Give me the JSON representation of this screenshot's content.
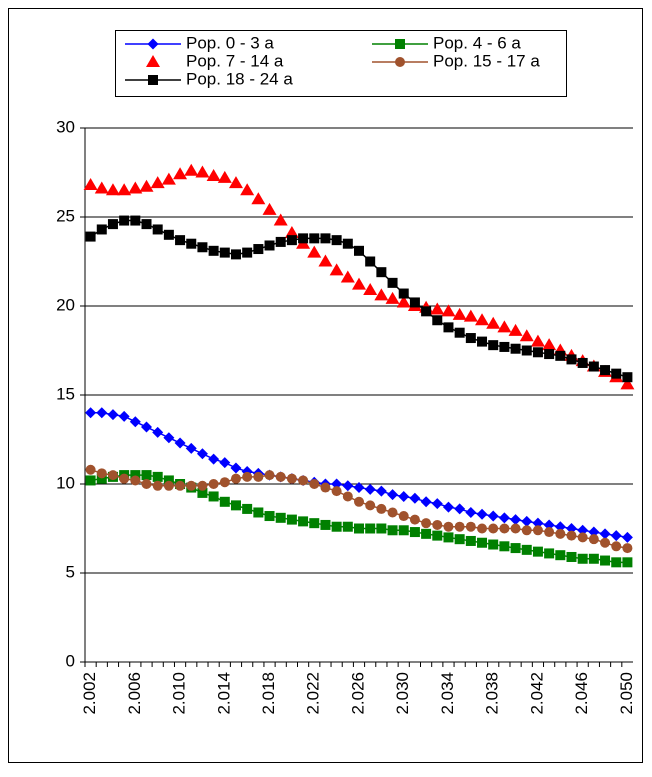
{
  "chart_data": {
    "type": "line",
    "categories": [
      "2.002",
      null,
      null,
      null,
      "2.006",
      null,
      null,
      null,
      "2.010",
      null,
      null,
      null,
      "2.014",
      null,
      null,
      null,
      "2.018",
      null,
      null,
      null,
      "2.022",
      null,
      null,
      null,
      "2.026",
      null,
      null,
      null,
      "2.030",
      null,
      null,
      null,
      "2.034",
      null,
      null,
      null,
      "2.038",
      null,
      null,
      null,
      "2.042",
      null,
      null,
      null,
      "2.046",
      null,
      null,
      null,
      "2.050"
    ],
    "series": [
      {
        "name": "Pop. 0 - 3 a",
        "color": "#0000ff",
        "marker": "diamond",
        "line": true,
        "values": [
          14.0,
          14.0,
          13.9,
          13.8,
          13.5,
          13.2,
          12.9,
          12.6,
          12.3,
          12.0,
          11.7,
          11.4,
          11.2,
          10.9,
          10.7,
          10.6,
          10.5,
          10.4,
          10.3,
          10.2,
          10.1,
          10.0,
          10.0,
          9.9,
          9.8,
          9.7,
          9.6,
          9.4,
          9.3,
          9.2,
          9.0,
          8.9,
          8.7,
          8.6,
          8.4,
          8.3,
          8.2,
          8.1,
          8.0,
          7.9,
          7.8,
          7.7,
          7.6,
          7.5,
          7.4,
          7.3,
          7.2,
          7.1,
          7.0
        ]
      },
      {
        "name": "Pop. 4 - 6 a",
        "color": "#008000",
        "marker": "square",
        "line": true,
        "values": [
          10.2,
          10.3,
          10.4,
          10.5,
          10.5,
          10.5,
          10.4,
          10.2,
          10.0,
          9.8,
          9.5,
          9.3,
          9.0,
          8.8,
          8.6,
          8.4,
          8.2,
          8.1,
          8.0,
          7.9,
          7.8,
          7.7,
          7.6,
          7.6,
          7.5,
          7.5,
          7.5,
          7.4,
          7.4,
          7.3,
          7.2,
          7.1,
          7.0,
          6.9,
          6.8,
          6.7,
          6.6,
          6.5,
          6.4,
          6.3,
          6.2,
          6.1,
          6.0,
          5.9,
          5.8,
          5.8,
          5.7,
          5.6,
          5.6
        ]
      },
      {
        "name": "Pop. 7 - 14 a",
        "color": "#ff0000",
        "marker": "triangle",
        "line": false,
        "values": [
          26.8,
          26.6,
          26.5,
          26.5,
          26.6,
          26.7,
          26.9,
          27.1,
          27.4,
          27.6,
          27.5,
          27.3,
          27.2,
          26.9,
          26.5,
          26.0,
          25.4,
          24.8,
          24.1,
          23.5,
          23.0,
          22.5,
          22.0,
          21.6,
          21.2,
          20.9,
          20.6,
          20.4,
          20.2,
          20.0,
          19.9,
          19.8,
          19.7,
          19.5,
          19.4,
          19.2,
          19.0,
          18.8,
          18.6,
          18.3,
          18.0,
          17.8,
          17.5,
          17.2,
          16.9,
          16.6,
          16.3,
          16.0,
          15.6
        ]
      },
      {
        "name": "Pop. 15 - 17 a",
        "color": "#a0522d",
        "marker": "circle",
        "line": true,
        "values": [
          10.8,
          10.6,
          10.5,
          10.3,
          10.2,
          10.0,
          9.9,
          9.9,
          9.9,
          9.9,
          9.9,
          10.0,
          10.1,
          10.3,
          10.4,
          10.4,
          10.5,
          10.4,
          10.3,
          10.2,
          10.0,
          9.8,
          9.6,
          9.3,
          9.0,
          8.8,
          8.6,
          8.4,
          8.2,
          8.0,
          7.8,
          7.7,
          7.6,
          7.6,
          7.6,
          7.5,
          7.5,
          7.5,
          7.5,
          7.4,
          7.4,
          7.3,
          7.2,
          7.1,
          7.0,
          6.9,
          6.7,
          6.5,
          6.4
        ]
      },
      {
        "name": "Pop. 18 - 24 a",
        "color": "#000000",
        "marker": "square",
        "line": true,
        "values": [
          23.9,
          24.3,
          24.6,
          24.8,
          24.8,
          24.6,
          24.3,
          24.0,
          23.7,
          23.5,
          23.3,
          23.1,
          23.0,
          22.9,
          23.0,
          23.2,
          23.4,
          23.6,
          23.7,
          23.8,
          23.8,
          23.8,
          23.7,
          23.5,
          23.1,
          22.5,
          21.9,
          21.3,
          20.7,
          20.2,
          19.7,
          19.2,
          18.8,
          18.5,
          18.2,
          18.0,
          17.8,
          17.7,
          17.6,
          17.5,
          17.4,
          17.3,
          17.2,
          17.0,
          16.8,
          16.6,
          16.4,
          16.2,
          16.0
        ]
      }
    ],
    "ylim": [
      0,
      30
    ],
    "yticks": [
      0,
      5,
      10,
      15,
      20,
      25,
      30
    ],
    "grid": true
  }
}
